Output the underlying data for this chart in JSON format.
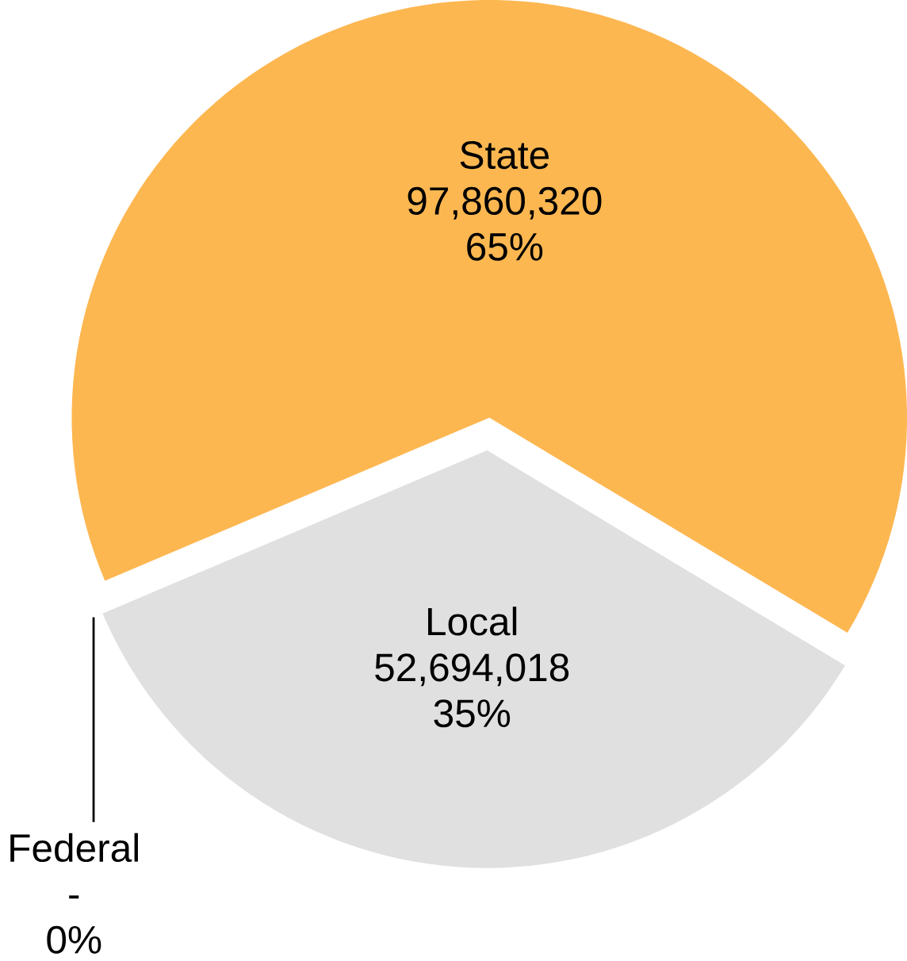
{
  "chart_data": {
    "type": "pie",
    "categories": [
      "State",
      "Local",
      "Federal"
    ],
    "values": [
      97860320,
      52694018,
      0
    ],
    "colors": [
      "#fdb751",
      "#e0e0e0",
      "#000000"
    ],
    "value_labels": [
      "97,860,320",
      "52,694,018",
      "-"
    ],
    "annotations": [
      "65%",
      "35%",
      "0%"
    ]
  }
}
